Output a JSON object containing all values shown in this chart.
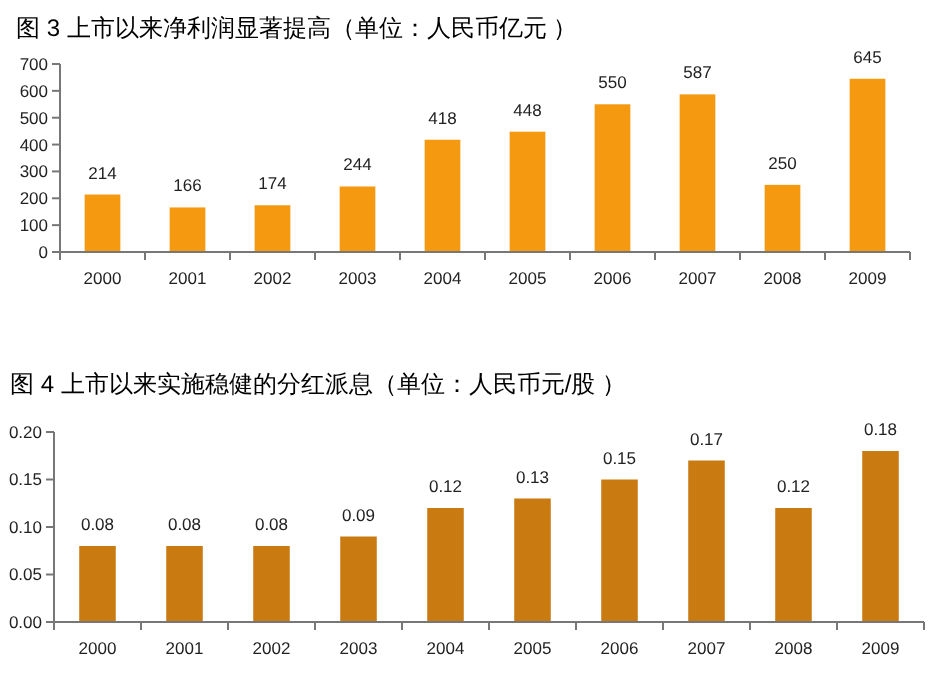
{
  "chart_data": [
    {
      "type": "bar",
      "title": "图 3  上市以来净利润显著提高（单位：人民币亿元 ）",
      "categories": [
        "2000",
        "2001",
        "2002",
        "2003",
        "2004",
        "2005",
        "2006",
        "2007",
        "2008",
        "2009"
      ],
      "values": [
        214,
        166,
        174,
        244,
        418,
        448,
        550,
        587,
        250,
        645
      ],
      "color": "#f59a10",
      "ylim": [
        0,
        700
      ],
      "yticks": [
        0,
        100,
        200,
        300,
        400,
        500,
        600,
        700
      ],
      "data_labels": true,
      "grid": false
    },
    {
      "type": "bar",
      "title": "图 4  上市以来实施稳健的分红派息（单位：人民币元/股 ）",
      "categories": [
        "2000",
        "2001",
        "2002",
        "2003",
        "2004",
        "2005",
        "2006",
        "2007",
        "2008",
        "2009"
      ],
      "values": [
        0.08,
        0.08,
        0.08,
        0.09,
        0.12,
        0.13,
        0.15,
        0.17,
        0.12,
        0.18
      ],
      "color": "#c97a10",
      "ylim": [
        0,
        0.2
      ],
      "yticks": [
        {
          "value": 0,
          "label": "0.00"
        },
        {
          "value": 0.05,
          "label": "0.05"
        },
        {
          "value": 0.1,
          "label": "0.10"
        },
        {
          "value": 0.15,
          "label": "0.15"
        },
        {
          "value": 0.2,
          "label": "0.20"
        }
      ],
      "data_labels": true,
      "grid": false
    }
  ]
}
